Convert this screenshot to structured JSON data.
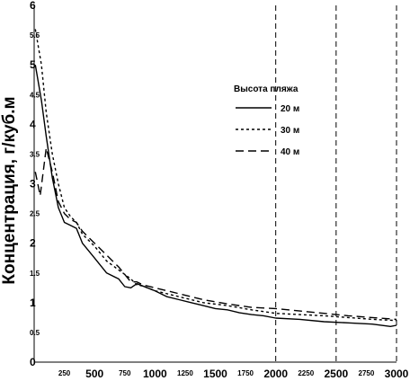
{
  "chart_data": {
    "type": "line",
    "title": "",
    "xlabel": "",
    "ylabel": "Концентрация, г/куб.м",
    "xlim": [
      0,
      3000
    ],
    "ylim": [
      0,
      6
    ],
    "x_ticks_major": [
      "500",
      "1000",
      "1500",
      "2000",
      "2500",
      "3000"
    ],
    "x_ticks_minor": [
      "250",
      "750",
      "1250",
      "1750",
      "2250",
      "2750"
    ],
    "y_ticks_major": [
      "0",
      "1",
      "2",
      "3",
      "4",
      "5",
      "6"
    ],
    "y_ticks_minor": [
      "0.5",
      "1.5",
      "2.5",
      "3.5",
      "4.5",
      "5.5"
    ],
    "grid": "dashed vertical at 2000, 2500, 3000",
    "legend": {
      "title": "Высота пляжа",
      "placement": "top-right",
      "entries": [
        "20 м",
        "30 м",
        "40 м"
      ]
    },
    "series": [
      {
        "name": "20 м",
        "style": "solid",
        "x": [
          10,
          60,
          100,
          150,
          200,
          250,
          300,
          350,
          400,
          500,
          600,
          700,
          750,
          800,
          850,
          900,
          1000,
          1100,
          1200,
          1300,
          1400,
          1500,
          1600,
          1700,
          1800,
          1900,
          2000,
          2200,
          2400,
          2600,
          2800,
          2950,
          3000
        ],
        "y": [
          5.0,
          4.4,
          3.8,
          3.1,
          2.6,
          2.35,
          2.3,
          2.25,
          2.0,
          1.75,
          1.5,
          1.4,
          1.27,
          1.25,
          1.32,
          1.28,
          1.2,
          1.1,
          1.05,
          1.0,
          0.95,
          0.9,
          0.88,
          0.83,
          0.8,
          0.78,
          0.74,
          0.72,
          0.68,
          0.66,
          0.64,
          0.6,
          0.62
        ]
      },
      {
        "name": "30 м",
        "style": "dotted",
        "x": [
          10,
          60,
          100,
          150,
          200,
          250,
          300,
          350,
          400,
          500,
          600,
          700,
          800,
          850,
          900,
          1000,
          1200,
          1400,
          1600,
          1800,
          2000,
          2200,
          2400,
          2600,
          2800,
          3000
        ],
        "y": [
          5.6,
          5.0,
          4.2,
          3.5,
          3.0,
          2.6,
          2.45,
          2.35,
          2.15,
          1.95,
          1.7,
          1.55,
          1.4,
          1.3,
          1.28,
          1.2,
          1.1,
          1.0,
          0.95,
          0.88,
          0.82,
          0.8,
          0.78,
          0.75,
          0.72,
          0.7
        ]
      },
      {
        "name": "40 м",
        "style": "dashed",
        "x": [
          10,
          50,
          100,
          150,
          200,
          250,
          300,
          350,
          400,
          500,
          600,
          700,
          800,
          850,
          900,
          1000,
          1200,
          1400,
          1600,
          1800,
          2000,
          2200,
          2400,
          2600,
          2800,
          3000
        ],
        "y": [
          3.2,
          2.8,
          3.6,
          3.2,
          2.7,
          2.5,
          2.4,
          2.35,
          2.2,
          2.0,
          1.8,
          1.6,
          1.35,
          1.35,
          1.3,
          1.25,
          1.15,
          1.05,
          0.98,
          0.92,
          0.9,
          0.86,
          0.82,
          0.78,
          0.75,
          0.72
        ]
      }
    ]
  }
}
